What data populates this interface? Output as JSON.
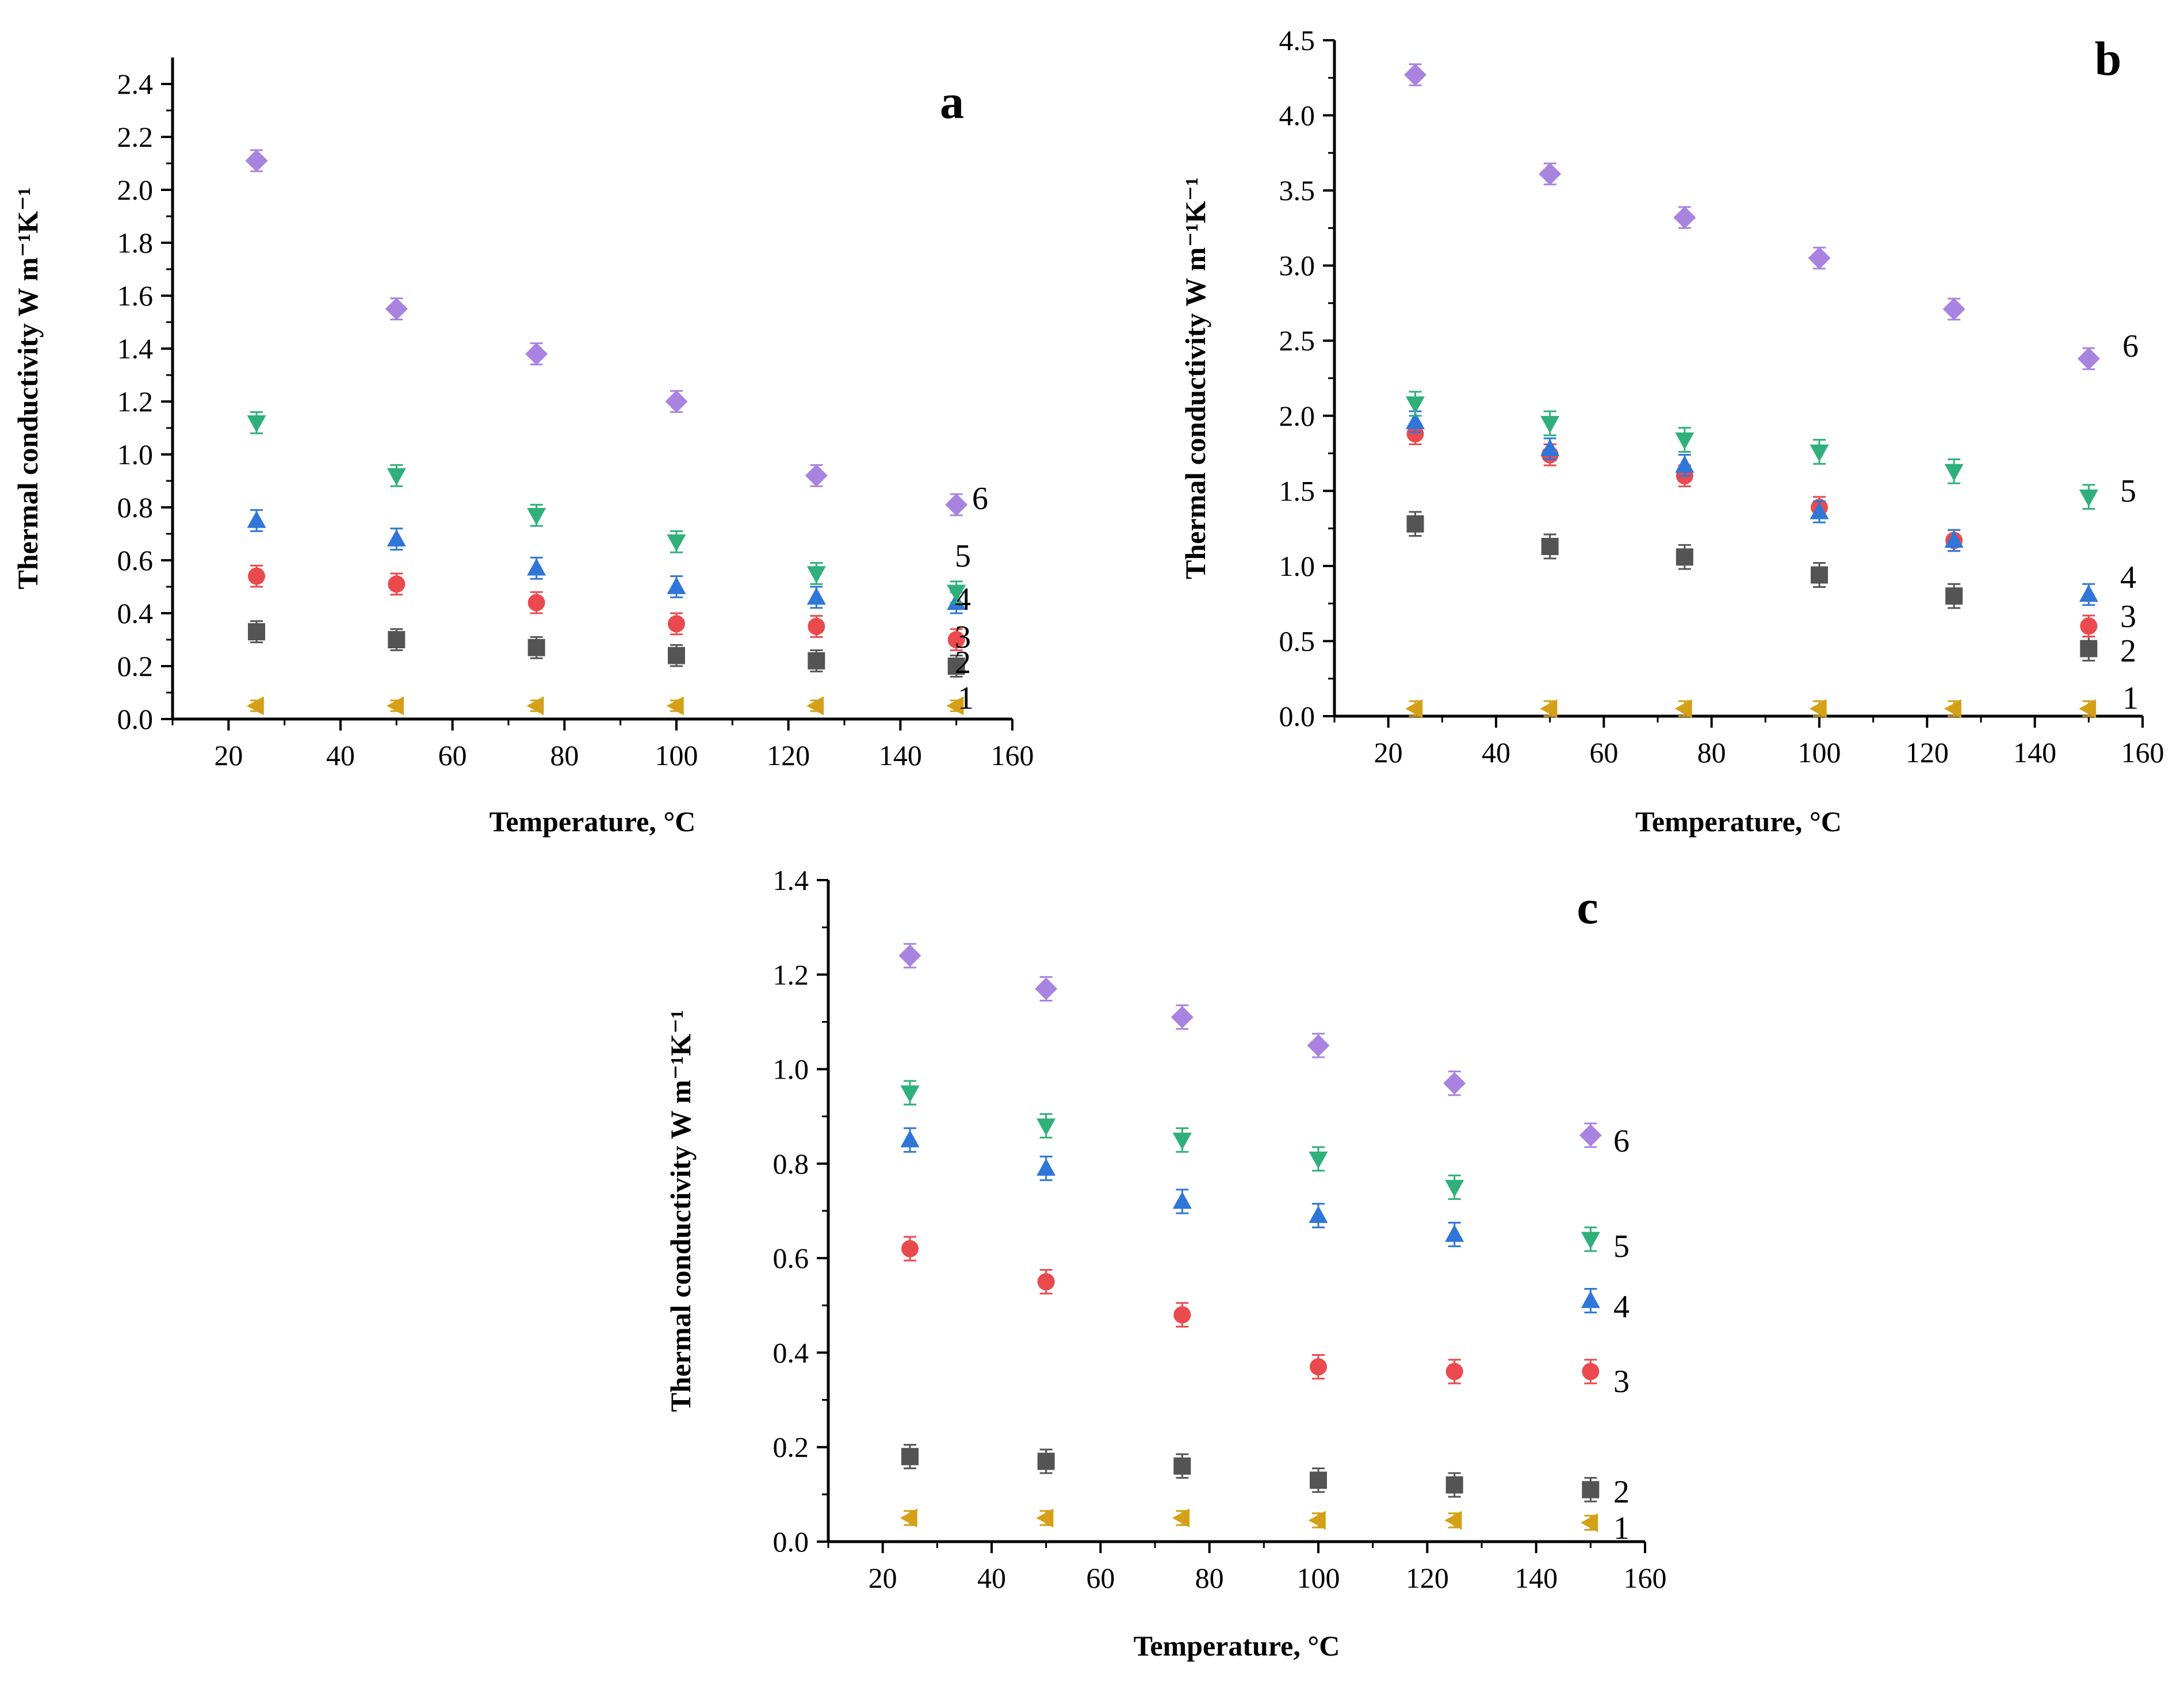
{
  "chart_data": [
    {
      "type": "scatter",
      "panel": "a",
      "xlabel": "Temperature, °C",
      "ylabel": "Thermal conductivity W m⁻¹K⁻¹",
      "xlim": [
        10,
        160
      ],
      "ylim": [
        0,
        2.5
      ],
      "xticks": [
        "20",
        "40",
        "60",
        "80",
        "100",
        "120",
        "140",
        "160"
      ],
      "yticks": [
        "0.0",
        "0.2",
        "0.4",
        "0.6",
        "0.8",
        "1.0",
        "1.2",
        "1.4",
        "1.6",
        "1.8",
        "2.0",
        "2.2",
        "2.4"
      ],
      "x": [
        25,
        50,
        75,
        100,
        125,
        150
      ],
      "series": [
        {
          "name": "1",
          "values": [
            0.05,
            0.05,
            0.05,
            0.05,
            0.05,
            0.05
          ],
          "error": 0.02
        },
        {
          "name": "2",
          "values": [
            0.33,
            0.3,
            0.27,
            0.24,
            0.22,
            0.2
          ],
          "error": 0.04
        },
        {
          "name": "3",
          "values": [
            0.54,
            0.51,
            0.44,
            0.36,
            0.35,
            0.3
          ],
          "error": 0.04
        },
        {
          "name": "4",
          "values": [
            0.75,
            0.68,
            0.57,
            0.5,
            0.46,
            0.44
          ],
          "error": 0.04
        },
        {
          "name": "5",
          "values": [
            1.12,
            0.92,
            0.77,
            0.67,
            0.55,
            0.48
          ],
          "error": 0.04
        },
        {
          "name": "6",
          "values": [
            2.11,
            1.55,
            1.38,
            1.2,
            0.92,
            0.81
          ],
          "error": 0.04
        }
      ]
    },
    {
      "type": "scatter",
      "panel": "b",
      "xlabel": "Temperature, °C",
      "ylabel": "Thermal conductivity W m⁻¹K⁻¹",
      "xlim": [
        10,
        160
      ],
      "ylim": [
        0,
        4.5
      ],
      "xticks": [
        "20",
        "40",
        "60",
        "80",
        "100",
        "120",
        "140",
        "160"
      ],
      "yticks": [
        "0.0",
        "0.5",
        "1.0",
        "1.5",
        "2.0",
        "2.5",
        "3.0",
        "3.5",
        "4.0",
        "4.5"
      ],
      "x": [
        25,
        50,
        75,
        100,
        125,
        150
      ],
      "series": [
        {
          "name": "1",
          "values": [
            0.05,
            0.05,
            0.05,
            0.05,
            0.05,
            0.05
          ],
          "error": 0.05
        },
        {
          "name": "2",
          "values": [
            1.28,
            1.13,
            1.06,
            0.94,
            0.8,
            0.45
          ],
          "error": 0.08
        },
        {
          "name": "3",
          "values": [
            1.88,
            1.74,
            1.6,
            1.39,
            1.17,
            0.6
          ],
          "error": 0.07
        },
        {
          "name": "4",
          "values": [
            1.96,
            1.78,
            1.67,
            1.36,
            1.17,
            0.81
          ],
          "error": 0.07
        },
        {
          "name": "5",
          "values": [
            2.08,
            1.95,
            1.84,
            1.76,
            1.63,
            1.46
          ],
          "error": 0.08
        },
        {
          "name": "6",
          "values": [
            4.27,
            3.61,
            3.32,
            3.05,
            2.71,
            2.38
          ],
          "error": 0.07
        }
      ]
    },
    {
      "type": "scatter",
      "panel": "c",
      "xlabel": "Temperature, °C",
      "ylabel": "Thermal conductivity W m⁻¹K⁻¹",
      "xlim": [
        10,
        160
      ],
      "ylim": [
        0,
        1.4
      ],
      "xticks": [
        "20",
        "40",
        "60",
        "80",
        "100",
        "120",
        "140",
        "160"
      ],
      "yticks": [
        "0.0",
        "0.2",
        "0.4",
        "0.6",
        "0.8",
        "1.0",
        "1.2",
        "1.4"
      ],
      "x": [
        25,
        50,
        75,
        100,
        125,
        150
      ],
      "series": [
        {
          "name": "1",
          "values": [
            0.05,
            0.05,
            0.05,
            0.045,
            0.045,
            0.04
          ],
          "error": 0.015
        },
        {
          "name": "2",
          "values": [
            0.18,
            0.17,
            0.16,
            0.13,
            0.12,
            0.11
          ],
          "error": 0.025
        },
        {
          "name": "3",
          "values": [
            0.62,
            0.55,
            0.48,
            0.37,
            0.36,
            0.36
          ],
          "error": 0.025
        },
        {
          "name": "4",
          "values": [
            0.85,
            0.79,
            0.72,
            0.69,
            0.65,
            0.51
          ],
          "error": 0.025
        },
        {
          "name": "5",
          "values": [
            0.95,
            0.88,
            0.85,
            0.81,
            0.75,
            0.64
          ],
          "error": 0.025
        },
        {
          "name": "6",
          "values": [
            1.24,
            1.17,
            1.11,
            1.05,
            0.97,
            0.86
          ],
          "error": 0.025
        }
      ]
    }
  ],
  "series_style": {
    "1": {
      "color": "#d4a017",
      "marker": "triangle-left"
    },
    "2": {
      "color": "#545454",
      "marker": "square"
    },
    "3": {
      "color": "#ea4a4e",
      "marker": "circle"
    },
    "4": {
      "color": "#2f76d8",
      "marker": "triangle-up"
    },
    "5": {
      "color": "#2fb07a",
      "marker": "triangle-down"
    },
    "6": {
      "color": "#a983e0",
      "marker": "diamond"
    }
  }
}
